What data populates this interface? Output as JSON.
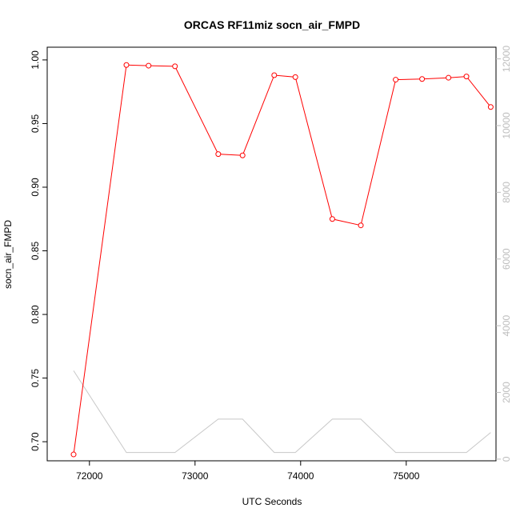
{
  "chart_data": {
    "type": "line",
    "title": "ORCAS RF11miz socn_air_FMPD",
    "xlabel": "UTC Seconds",
    "ylabel": "socn_air_FMPD",
    "xlim": [
      71600,
      75850
    ],
    "ylim": [
      0.685,
      1.01
    ],
    "y2lim": [
      -50,
      12350
    ],
    "x_ticks": [
      72000,
      73000,
      74000,
      75000
    ],
    "y_ticks": [
      0.7,
      0.75,
      0.8,
      0.85,
      0.9,
      0.95,
      1.0
    ],
    "y_tick_labels": [
      "0.70",
      "0.75",
      "0.80",
      "0.85",
      "0.90",
      "0.95",
      "1.00"
    ],
    "y2_ticks": [
      0,
      2000,
      4000,
      6000,
      8000,
      10000,
      12000
    ],
    "grid": false,
    "series": [
      {
        "axis": "left",
        "color": "#ff0000",
        "marker": "open-circle",
        "x": [
          71850,
          72350,
          72560,
          72810,
          73220,
          73450,
          73750,
          73950,
          74300,
          74570,
          74900,
          75150,
          75400,
          75570,
          75800
        ],
        "y": [
          0.69,
          0.996,
          0.9955,
          0.995,
          0.926,
          0.925,
          0.988,
          0.9865,
          0.875,
          0.87,
          0.9845,
          0.985,
          0.986,
          0.987,
          0.963
        ]
      },
      {
        "axis": "right",
        "color": "#c8c8c8",
        "marker": "none",
        "x": [
          71850,
          72350,
          72560,
          72810,
          73220,
          73450,
          73750,
          73950,
          74300,
          74570,
          74900,
          75150,
          75400,
          75570,
          75800
        ],
        "y": [
          2650,
          200,
          200,
          200,
          1200,
          1200,
          200,
          200,
          1200,
          1200,
          200,
          200,
          200,
          200,
          800
        ]
      }
    ]
  }
}
